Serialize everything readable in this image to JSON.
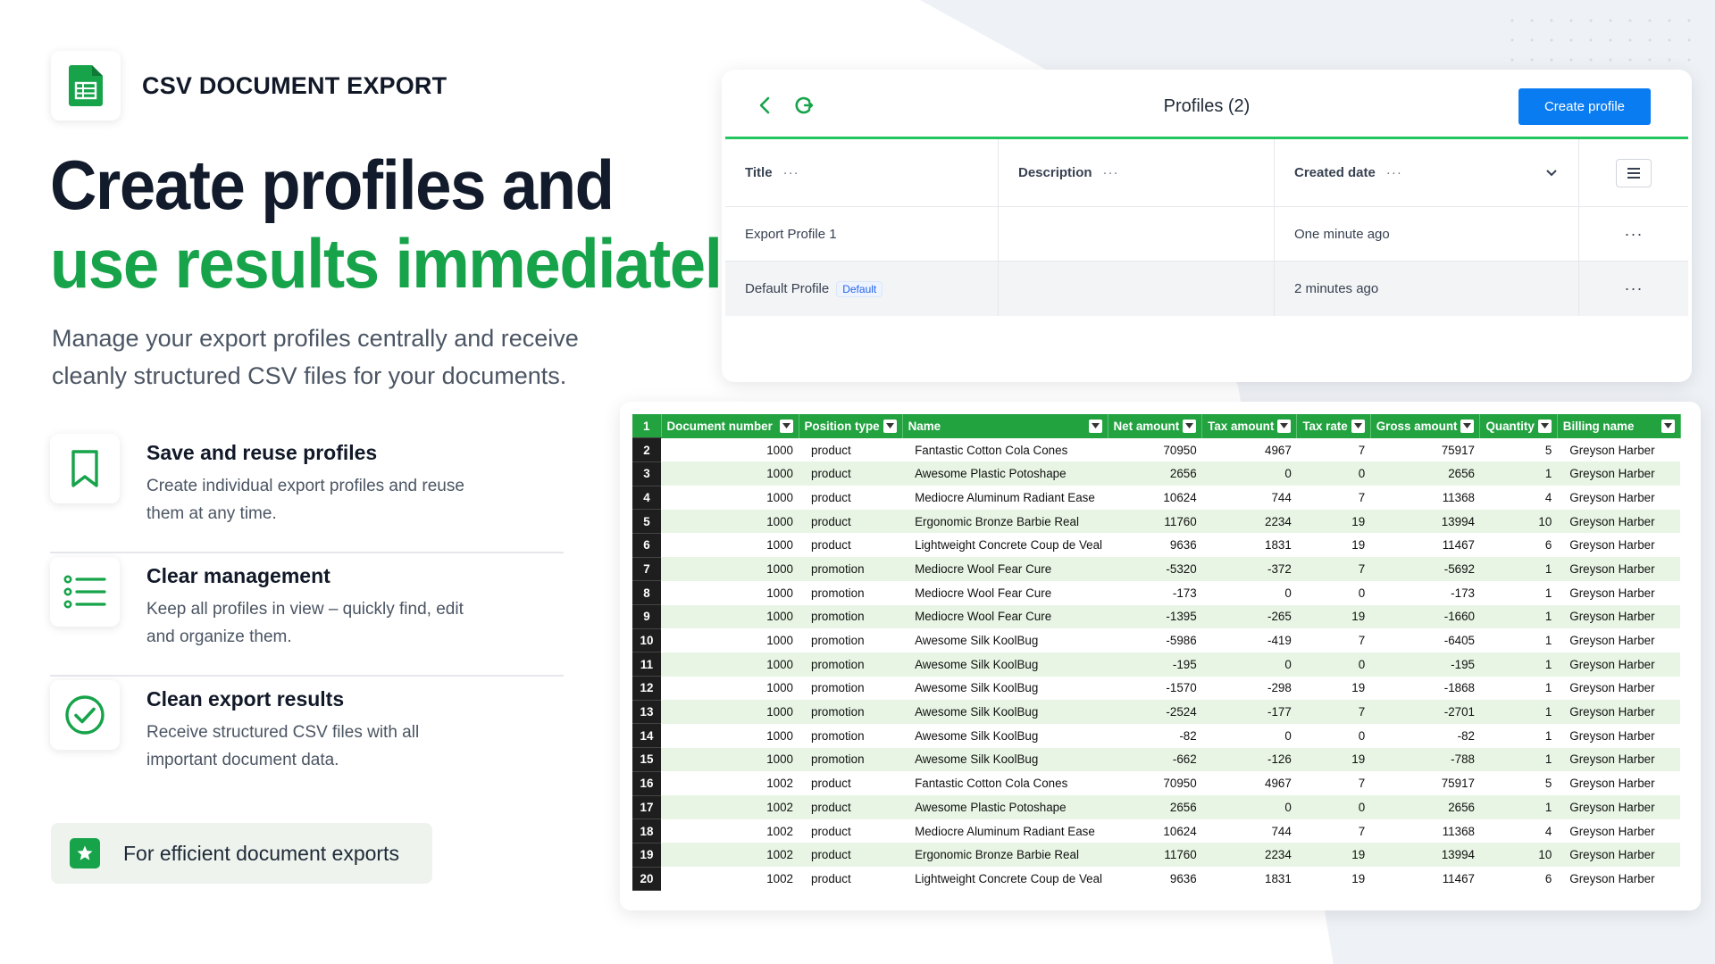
{
  "brand": {
    "name": "CSV DOCUMENT EXPORT",
    "icon": "spreadsheet-icon",
    "accent": "#16a34a"
  },
  "headline": {
    "line1": "Create profiles and",
    "line2": "use results immediately"
  },
  "subtitle": "Manage your export profiles centrally and receive cleanly structured CSV files for your documents.",
  "features": [
    {
      "icon": "bookmark-icon",
      "title": "Save and reuse profiles",
      "desc": "Create individual export profiles and reuse them at any time."
    },
    {
      "icon": "list-icon",
      "title": "Clear management",
      "desc": "Keep all profiles in view – quickly find, edit and organize them."
    },
    {
      "icon": "check-circle-icon",
      "title": "Clean export results",
      "desc": "Receive structured CSV files with all important document data."
    }
  ],
  "tagline": {
    "icon": "star-icon",
    "text": "For efficient document exports"
  },
  "profiles": {
    "title": "Profiles (2)",
    "create_label": "Create profile",
    "columns": [
      "Title",
      "Description",
      "Created date"
    ],
    "rows": [
      {
        "title": "Export Profile 1",
        "badge": "",
        "description": "",
        "created": "One minute ago"
      },
      {
        "title": "Default Profile",
        "badge": "Default",
        "description": "",
        "created": "2 minutes ago"
      }
    ]
  },
  "sheet": {
    "headers": [
      "Document number",
      "Position type",
      "Name",
      "Net amount",
      "Tax amount",
      "Tax rate",
      "Gross amount",
      "Quantity",
      "Billing name"
    ],
    "rows": [
      [
        "1000",
        "product",
        "Fantastic Cotton Cola Cones",
        "70950",
        "4967",
        "7",
        "75917",
        "5",
        "Greyson Harber"
      ],
      [
        "1000",
        "product",
        "Awesome Plastic Potoshape",
        "2656",
        "0",
        "0",
        "2656",
        "1",
        "Greyson Harber"
      ],
      [
        "1000",
        "product",
        "Mediocre Aluminum Radiant Ease",
        "10624",
        "744",
        "7",
        "11368",
        "4",
        "Greyson Harber"
      ],
      [
        "1000",
        "product",
        "Ergonomic Bronze Barbie Real",
        "11760",
        "2234",
        "19",
        "13994",
        "10",
        "Greyson Harber"
      ],
      [
        "1000",
        "product",
        "Lightweight Concrete Coup de Veal",
        "9636",
        "1831",
        "19",
        "11467",
        "6",
        "Greyson Harber"
      ],
      [
        "1000",
        "promotion",
        "Mediocre Wool Fear Cure",
        "-5320",
        "-372",
        "7",
        "-5692",
        "1",
        "Greyson Harber"
      ],
      [
        "1000",
        "promotion",
        "Mediocre Wool Fear Cure",
        "-173",
        "0",
        "0",
        "-173",
        "1",
        "Greyson Harber"
      ],
      [
        "1000",
        "promotion",
        "Mediocre Wool Fear Cure",
        "-1395",
        "-265",
        "19",
        "-1660",
        "1",
        "Greyson Harber"
      ],
      [
        "1000",
        "promotion",
        "Awesome Silk KoolBug",
        "-5986",
        "-419",
        "7",
        "-6405",
        "1",
        "Greyson Harber"
      ],
      [
        "1000",
        "promotion",
        "Awesome Silk KoolBug",
        "-195",
        "0",
        "0",
        "-195",
        "1",
        "Greyson Harber"
      ],
      [
        "1000",
        "promotion",
        "Awesome Silk KoolBug",
        "-1570",
        "-298",
        "19",
        "-1868",
        "1",
        "Greyson Harber"
      ],
      [
        "1000",
        "promotion",
        "Awesome Silk KoolBug",
        "-2524",
        "-177",
        "7",
        "-2701",
        "1",
        "Greyson Harber"
      ],
      [
        "1000",
        "promotion",
        "Awesome Silk KoolBug",
        "-82",
        "0",
        "0",
        "-82",
        "1",
        "Greyson Harber"
      ],
      [
        "1000",
        "promotion",
        "Awesome Silk KoolBug",
        "-662",
        "-126",
        "19",
        "-788",
        "1",
        "Greyson Harber"
      ],
      [
        "1002",
        "product",
        "Fantastic Cotton Cola Cones",
        "70950",
        "4967",
        "7",
        "75917",
        "5",
        "Greyson Harber"
      ],
      [
        "1002",
        "product",
        "Awesome Plastic Potoshape",
        "2656",
        "0",
        "0",
        "2656",
        "1",
        "Greyson Harber"
      ],
      [
        "1002",
        "product",
        "Mediocre Aluminum Radiant Ease",
        "10624",
        "744",
        "7",
        "11368",
        "4",
        "Greyson Harber"
      ],
      [
        "1002",
        "product",
        "Ergonomic Bronze Barbie Real",
        "11760",
        "2234",
        "19",
        "13994",
        "10",
        "Greyson Harber"
      ],
      [
        "1002",
        "product",
        "Lightweight Concrete Coup de Veal",
        "9636",
        "1831",
        "19",
        "11467",
        "6",
        "Greyson Harber"
      ]
    ]
  }
}
